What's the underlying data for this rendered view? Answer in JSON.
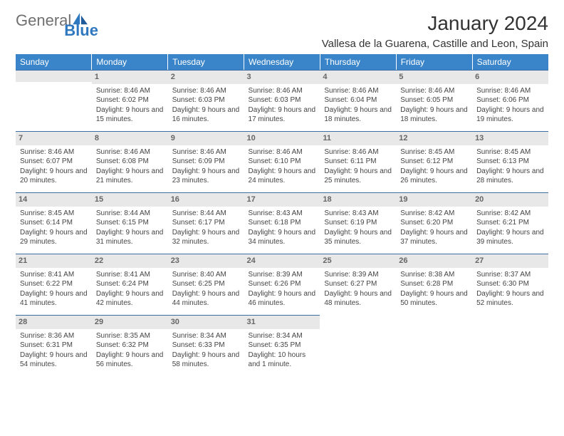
{
  "brand": {
    "part1": "General",
    "part2": "Blue"
  },
  "title": "January 2024",
  "location": "Vallesa de la Guarena, Castille and Leon, Spain",
  "colors": {
    "header_bg": "#3a85c9",
    "header_text": "#ffffff",
    "daynum_bg": "#e8e8e8",
    "daynum_text": "#666666",
    "rule": "#3a6ea5",
    "body_text": "#444444",
    "logo_gray": "#707070",
    "logo_blue": "#2e78bf"
  },
  "weekdays": [
    "Sunday",
    "Monday",
    "Tuesday",
    "Wednesday",
    "Thursday",
    "Friday",
    "Saturday"
  ],
  "weeks": [
    [
      null,
      {
        "n": "1",
        "sr": "8:46 AM",
        "ss": "6:02 PM",
        "dl": "9 hours and 15 minutes."
      },
      {
        "n": "2",
        "sr": "8:46 AM",
        "ss": "6:03 PM",
        "dl": "9 hours and 16 minutes."
      },
      {
        "n": "3",
        "sr": "8:46 AM",
        "ss": "6:03 PM",
        "dl": "9 hours and 17 minutes."
      },
      {
        "n": "4",
        "sr": "8:46 AM",
        "ss": "6:04 PM",
        "dl": "9 hours and 18 minutes."
      },
      {
        "n": "5",
        "sr": "8:46 AM",
        "ss": "6:05 PM",
        "dl": "9 hours and 18 minutes."
      },
      {
        "n": "6",
        "sr": "8:46 AM",
        "ss": "6:06 PM",
        "dl": "9 hours and 19 minutes."
      }
    ],
    [
      {
        "n": "7",
        "sr": "8:46 AM",
        "ss": "6:07 PM",
        "dl": "9 hours and 20 minutes."
      },
      {
        "n": "8",
        "sr": "8:46 AM",
        "ss": "6:08 PM",
        "dl": "9 hours and 21 minutes."
      },
      {
        "n": "9",
        "sr": "8:46 AM",
        "ss": "6:09 PM",
        "dl": "9 hours and 23 minutes."
      },
      {
        "n": "10",
        "sr": "8:46 AM",
        "ss": "6:10 PM",
        "dl": "9 hours and 24 minutes."
      },
      {
        "n": "11",
        "sr": "8:46 AM",
        "ss": "6:11 PM",
        "dl": "9 hours and 25 minutes."
      },
      {
        "n": "12",
        "sr": "8:45 AM",
        "ss": "6:12 PM",
        "dl": "9 hours and 26 minutes."
      },
      {
        "n": "13",
        "sr": "8:45 AM",
        "ss": "6:13 PM",
        "dl": "9 hours and 28 minutes."
      }
    ],
    [
      {
        "n": "14",
        "sr": "8:45 AM",
        "ss": "6:14 PM",
        "dl": "9 hours and 29 minutes."
      },
      {
        "n": "15",
        "sr": "8:44 AM",
        "ss": "6:15 PM",
        "dl": "9 hours and 31 minutes."
      },
      {
        "n": "16",
        "sr": "8:44 AM",
        "ss": "6:17 PM",
        "dl": "9 hours and 32 minutes."
      },
      {
        "n": "17",
        "sr": "8:43 AM",
        "ss": "6:18 PM",
        "dl": "9 hours and 34 minutes."
      },
      {
        "n": "18",
        "sr": "8:43 AM",
        "ss": "6:19 PM",
        "dl": "9 hours and 35 minutes."
      },
      {
        "n": "19",
        "sr": "8:42 AM",
        "ss": "6:20 PM",
        "dl": "9 hours and 37 minutes."
      },
      {
        "n": "20",
        "sr": "8:42 AM",
        "ss": "6:21 PM",
        "dl": "9 hours and 39 minutes."
      }
    ],
    [
      {
        "n": "21",
        "sr": "8:41 AM",
        "ss": "6:22 PM",
        "dl": "9 hours and 41 minutes."
      },
      {
        "n": "22",
        "sr": "8:41 AM",
        "ss": "6:24 PM",
        "dl": "9 hours and 42 minutes."
      },
      {
        "n": "23",
        "sr": "8:40 AM",
        "ss": "6:25 PM",
        "dl": "9 hours and 44 minutes."
      },
      {
        "n": "24",
        "sr": "8:39 AM",
        "ss": "6:26 PM",
        "dl": "9 hours and 46 minutes."
      },
      {
        "n": "25",
        "sr": "8:39 AM",
        "ss": "6:27 PM",
        "dl": "9 hours and 48 minutes."
      },
      {
        "n": "26",
        "sr": "8:38 AM",
        "ss": "6:28 PM",
        "dl": "9 hours and 50 minutes."
      },
      {
        "n": "27",
        "sr": "8:37 AM",
        "ss": "6:30 PM",
        "dl": "9 hours and 52 minutes."
      }
    ],
    [
      {
        "n": "28",
        "sr": "8:36 AM",
        "ss": "6:31 PM",
        "dl": "9 hours and 54 minutes."
      },
      {
        "n": "29",
        "sr": "8:35 AM",
        "ss": "6:32 PM",
        "dl": "9 hours and 56 minutes."
      },
      {
        "n": "30",
        "sr": "8:34 AM",
        "ss": "6:33 PM",
        "dl": "9 hours and 58 minutes."
      },
      {
        "n": "31",
        "sr": "8:34 AM",
        "ss": "6:35 PM",
        "dl": "10 hours and 1 minute."
      },
      null,
      null,
      null
    ]
  ],
  "labels": {
    "sunrise": "Sunrise:",
    "sunset": "Sunset:",
    "daylight": "Daylight:"
  }
}
